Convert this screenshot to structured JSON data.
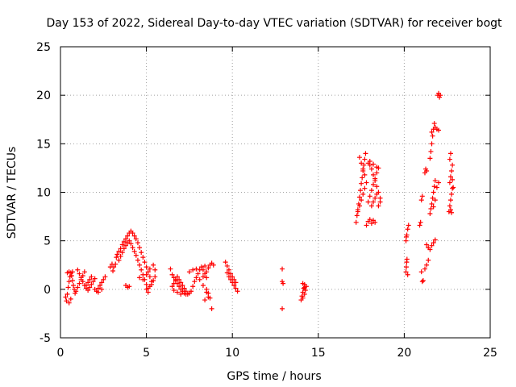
{
  "chart_data": {
    "type": "scatter",
    "title": "Day 153 of 2022, Sidereal Day-to-day VTEC variation (SDTVAR) for receiver bogt",
    "xlabel": "GPS time / hours",
    "ylabel": "SDTVAR / TECUs",
    "xlim": [
      0,
      25
    ],
    "ylim": [
      -5,
      25
    ],
    "xticks": [
      0,
      5,
      10,
      15,
      20,
      25
    ],
    "yticks": [
      -5,
      0,
      5,
      10,
      15,
      20,
      25
    ],
    "grid": true,
    "marker": "+",
    "color": "#ff0000",
    "series": [
      {
        "name": "SDTVAR",
        "points": [
          [
            0.3,
            -0.8
          ],
          [
            0.35,
            -1.2
          ],
          [
            0.4,
            -0.5
          ],
          [
            0.45,
            0.2
          ],
          [
            0.5,
            0.8
          ],
          [
            0.55,
            1.3
          ],
          [
            0.6,
            1.7
          ],
          [
            0.65,
            1.4
          ],
          [
            0.7,
            0.9
          ],
          [
            0.75,
            0.4
          ],
          [
            0.8,
            0.0
          ],
          [
            0.85,
            -0.4
          ],
          [
            0.5,
            -1.4
          ],
          [
            0.6,
            -1.0
          ],
          [
            0.4,
            1.7
          ],
          [
            0.5,
            1.8
          ],
          [
            0.7,
            1.8
          ],
          [
            0.9,
            -0.2
          ],
          [
            1.0,
            0.2
          ],
          [
            1.1,
            0.6
          ],
          [
            1.2,
            1.0
          ],
          [
            1.3,
            1.4
          ],
          [
            1.4,
            1.8
          ],
          [
            1.0,
            2.0
          ],
          [
            1.1,
            1.6
          ],
          [
            1.2,
            1.2
          ],
          [
            1.3,
            0.8
          ],
          [
            1.4,
            0.4
          ],
          [
            1.5,
            0.1
          ],
          [
            1.6,
            -0.1
          ],
          [
            1.7,
            0.2
          ],
          [
            1.8,
            0.5
          ],
          [
            1.9,
            0.8
          ],
          [
            2.0,
            1.1
          ],
          [
            1.5,
            0.4
          ],
          [
            1.6,
            0.7
          ],
          [
            1.7,
            1.0
          ],
          [
            1.8,
            1.3
          ],
          [
            2.0,
            0.0
          ],
          [
            2.1,
            -0.2
          ],
          [
            2.2,
            0.1
          ],
          [
            2.3,
            0.4
          ],
          [
            2.4,
            0.7
          ],
          [
            2.5,
            1.0
          ],
          [
            2.6,
            1.3
          ],
          [
            2.2,
            -0.3
          ],
          [
            2.4,
            0.0
          ],
          [
            2.9,
            2.3
          ],
          [
            3.0,
            2.6
          ],
          [
            3.05,
            1.9
          ],
          [
            3.1,
            2.3
          ],
          [
            3.2,
            2.6
          ],
          [
            3.25,
            3.3
          ],
          [
            3.3,
            3.6
          ],
          [
            3.4,
            3.9
          ],
          [
            3.5,
            4.2
          ],
          [
            3.6,
            4.6
          ],
          [
            3.7,
            4.9
          ],
          [
            3.8,
            5.2
          ],
          [
            3.9,
            5.5
          ],
          [
            4.0,
            5.8
          ],
          [
            4.1,
            6.0
          ],
          [
            4.2,
            5.8
          ],
          [
            4.3,
            5.5
          ],
          [
            4.4,
            5.2
          ],
          [
            4.5,
            4.8
          ],
          [
            4.6,
            4.3
          ],
          [
            4.7,
            3.8
          ],
          [
            4.8,
            3.3
          ],
          [
            4.9,
            2.8
          ],
          [
            5.0,
            2.3
          ],
          [
            5.1,
            1.8
          ],
          [
            5.2,
            1.3
          ],
          [
            5.3,
            0.8
          ],
          [
            3.4,
            3.0
          ],
          [
            3.5,
            3.4
          ],
          [
            3.6,
            3.8
          ],
          [
            3.7,
            4.2
          ],
          [
            3.8,
            4.5
          ],
          [
            3.9,
            4.8
          ],
          [
            4.0,
            5.0
          ],
          [
            4.1,
            4.7
          ],
          [
            4.2,
            4.3
          ],
          [
            4.3,
            3.9
          ],
          [
            4.4,
            3.5
          ],
          [
            4.5,
            3.0
          ],
          [
            4.6,
            2.5
          ],
          [
            4.7,
            2.0
          ],
          [
            4.8,
            1.5
          ],
          [
            4.9,
            1.0
          ],
          [
            5.0,
            0.5
          ],
          [
            5.1,
            0.1
          ],
          [
            3.8,
            0.4
          ],
          [
            3.9,
            0.2
          ],
          [
            4.0,
            0.3
          ],
          [
            4.6,
            1.2
          ],
          [
            4.8,
            1.0
          ],
          [
            5.0,
            0.0
          ],
          [
            5.2,
            0.3
          ],
          [
            5.3,
            0.5
          ],
          [
            5.4,
            0.9
          ],
          [
            5.5,
            1.3
          ],
          [
            5.1,
            -0.3
          ],
          [
            5.0,
            1.5
          ],
          [
            5.2,
            2.1
          ],
          [
            5.4,
            2.5
          ],
          [
            5.5,
            2.0
          ],
          [
            6.4,
            2.1
          ],
          [
            6.5,
            1.5
          ],
          [
            6.6,
            1.2
          ],
          [
            6.7,
            0.9
          ],
          [
            6.8,
            0.6
          ],
          [
            6.9,
            0.3
          ],
          [
            7.0,
            0.0
          ],
          [
            7.1,
            -0.2
          ],
          [
            7.2,
            -0.4
          ],
          [
            7.3,
            -0.5
          ],
          [
            6.5,
            0.3
          ],
          [
            6.6,
            0.6
          ],
          [
            6.7,
            1.0
          ],
          [
            6.8,
            1.3
          ],
          [
            6.9,
            1.0
          ],
          [
            7.0,
            0.7
          ],
          [
            7.1,
            0.4
          ],
          [
            7.2,
            0.1
          ],
          [
            7.3,
            -0.2
          ],
          [
            7.4,
            -0.5
          ],
          [
            7.5,
            -0.4
          ],
          [
            7.6,
            -0.2
          ],
          [
            6.6,
            -0.1
          ],
          [
            6.8,
            -0.3
          ],
          [
            7.0,
            -0.5
          ],
          [
            7.7,
            0.3
          ],
          [
            7.8,
            0.8
          ],
          [
            7.9,
            1.2
          ],
          [
            8.0,
            1.6
          ],
          [
            8.1,
            2.0
          ],
          [
            8.2,
            2.3
          ],
          [
            8.3,
            2.0
          ],
          [
            8.4,
            1.6
          ],
          [
            8.5,
            1.2
          ],
          [
            8.3,
            1.3
          ],
          [
            8.5,
            1.8
          ],
          [
            8.6,
            2.2
          ],
          [
            8.7,
            2.5
          ],
          [
            8.8,
            2.7
          ],
          [
            8.4,
            2.4
          ],
          [
            8.6,
            -0.4
          ],
          [
            8.7,
            -0.9
          ],
          [
            8.5,
            -0.3
          ],
          [
            7.5,
            1.8
          ],
          [
            7.7,
            2.0
          ],
          [
            7.9,
            2.1
          ],
          [
            8.1,
            1.0
          ],
          [
            8.3,
            0.4
          ],
          [
            8.5,
            0.0
          ],
          [
            8.4,
            -1.1
          ],
          [
            8.6,
            -0.8
          ],
          [
            8.8,
            -2.0
          ],
          [
            8.9,
            2.5
          ],
          [
            9.6,
            2.8
          ],
          [
            9.7,
            2.4
          ],
          [
            9.8,
            2.0
          ],
          [
            9.9,
            1.6
          ],
          [
            10.0,
            1.3
          ],
          [
            10.1,
            1.0
          ],
          [
            10.2,
            0.7
          ],
          [
            9.7,
            1.7
          ],
          [
            9.8,
            1.3
          ],
          [
            9.9,
            1.0
          ],
          [
            10.0,
            0.7
          ],
          [
            10.1,
            0.4
          ],
          [
            10.2,
            0.1
          ],
          [
            10.3,
            -0.2
          ],
          [
            12.9,
            2.1
          ],
          [
            12.9,
            0.8
          ],
          [
            12.95,
            0.6
          ],
          [
            12.9,
            -2.0
          ],
          [
            14.0,
            -1.1
          ],
          [
            14.05,
            -0.7
          ],
          [
            14.1,
            -0.3
          ],
          [
            14.15,
            0.1
          ],
          [
            14.2,
            0.5
          ],
          [
            14.1,
            -0.9
          ],
          [
            14.2,
            -0.5
          ],
          [
            14.25,
            -0.1
          ],
          [
            14.3,
            0.3
          ],
          [
            14.1,
            0.6
          ],
          [
            14.2,
            0.2
          ],
          [
            17.2,
            6.9
          ],
          [
            17.25,
            7.6
          ],
          [
            17.3,
            8.2
          ],
          [
            17.35,
            8.8
          ],
          [
            17.4,
            9.5
          ],
          [
            17.45,
            10.2
          ],
          [
            17.5,
            10.9
          ],
          [
            17.55,
            11.5
          ],
          [
            17.6,
            12.2
          ],
          [
            17.65,
            12.8
          ],
          [
            17.7,
            13.4
          ],
          [
            17.75,
            14.0
          ],
          [
            17.4,
            13.6
          ],
          [
            17.5,
            13.0
          ],
          [
            17.6,
            12.4
          ],
          [
            17.7,
            11.8
          ],
          [
            17.3,
            8.0
          ],
          [
            17.4,
            8.6
          ],
          [
            17.5,
            9.2
          ],
          [
            17.6,
            9.8
          ],
          [
            17.7,
            10.4
          ],
          [
            17.8,
            11.0
          ],
          [
            17.8,
            6.6
          ],
          [
            17.9,
            7.0
          ],
          [
            18.0,
            7.2
          ],
          [
            18.1,
            6.8
          ],
          [
            18.2,
            7.1
          ],
          [
            18.3,
            6.9
          ],
          [
            17.9,
            9.0
          ],
          [
            18.0,
            9.6
          ],
          [
            18.1,
            10.2
          ],
          [
            18.2,
            10.8
          ],
          [
            18.3,
            11.4
          ],
          [
            18.4,
            12.0
          ],
          [
            18.5,
            12.5
          ],
          [
            18.0,
            12.8
          ],
          [
            18.1,
            12.4
          ],
          [
            18.2,
            11.8
          ],
          [
            18.3,
            11.2
          ],
          [
            18.4,
            10.6
          ],
          [
            18.5,
            10.0
          ],
          [
            18.6,
            9.4
          ],
          [
            18.1,
            8.6
          ],
          [
            18.2,
            9.0
          ],
          [
            18.3,
            9.4
          ],
          [
            18.4,
            9.8
          ],
          [
            18.5,
            8.6
          ],
          [
            18.6,
            9.0
          ],
          [
            17.9,
            13.0
          ],
          [
            18.0,
            13.2
          ],
          [
            18.2,
            12.9
          ],
          [
            18.4,
            12.6
          ],
          [
            20.1,
            1.8
          ],
          [
            20.12,
            2.3
          ],
          [
            20.14,
            2.8
          ],
          [
            20.16,
            3.1
          ],
          [
            20.2,
            1.5
          ],
          [
            20.1,
            5.0
          ],
          [
            20.15,
            5.6
          ],
          [
            20.2,
            6.2
          ],
          [
            20.25,
            6.6
          ],
          [
            20.12,
            5.4
          ],
          [
            20.9,
            6.6
          ],
          [
            20.95,
            6.9
          ],
          [
            21.0,
            9.2
          ],
          [
            21.05,
            9.6
          ],
          [
            21.0,
            1.8
          ],
          [
            21.05,
            0.8
          ],
          [
            21.1,
            0.9
          ],
          [
            21.2,
            12.0
          ],
          [
            21.25,
            12.4
          ],
          [
            21.3,
            12.2
          ],
          [
            21.2,
            2.1
          ],
          [
            21.3,
            2.5
          ],
          [
            21.4,
            3.0
          ],
          [
            21.3,
            4.6
          ],
          [
            21.4,
            4.3
          ],
          [
            21.5,
            4.1
          ],
          [
            21.6,
            4.5
          ],
          [
            21.7,
            4.8
          ],
          [
            21.8,
            5.1
          ],
          [
            21.5,
            7.8
          ],
          [
            21.55,
            8.3
          ],
          [
            21.6,
            8.8
          ],
          [
            21.65,
            9.4
          ],
          [
            21.7,
            10.0
          ],
          [
            21.75,
            10.6
          ],
          [
            21.8,
            11.2
          ],
          [
            21.7,
            8.5
          ],
          [
            21.8,
            9.2
          ],
          [
            21.5,
            13.5
          ],
          [
            21.55,
            14.2
          ],
          [
            21.6,
            15.0
          ],
          [
            21.65,
            15.8
          ],
          [
            21.7,
            16.5
          ],
          [
            21.75,
            17.1
          ],
          [
            21.6,
            16.2
          ],
          [
            21.8,
            16.7
          ],
          [
            21.9,
            16.5
          ],
          [
            22.0,
            16.4
          ],
          [
            21.9,
            10.5
          ],
          [
            22.0,
            11.0
          ],
          [
            21.95,
            20.0
          ],
          [
            22.0,
            20.2
          ],
          [
            22.05,
            19.8
          ],
          [
            22.1,
            20.0
          ],
          [
            22.6,
            8.0
          ],
          [
            22.65,
            8.6
          ],
          [
            22.7,
            9.2
          ],
          [
            22.75,
            9.8
          ],
          [
            22.8,
            10.4
          ],
          [
            22.65,
            11.0
          ],
          [
            22.7,
            11.6
          ],
          [
            22.75,
            12.2
          ],
          [
            22.8,
            12.8
          ],
          [
            22.65,
            13.4
          ],
          [
            22.7,
            14.0
          ],
          [
            22.8,
            11.3
          ],
          [
            22.85,
            10.5
          ],
          [
            22.7,
            8.2
          ],
          [
            22.75,
            7.9
          ]
        ]
      }
    ]
  }
}
